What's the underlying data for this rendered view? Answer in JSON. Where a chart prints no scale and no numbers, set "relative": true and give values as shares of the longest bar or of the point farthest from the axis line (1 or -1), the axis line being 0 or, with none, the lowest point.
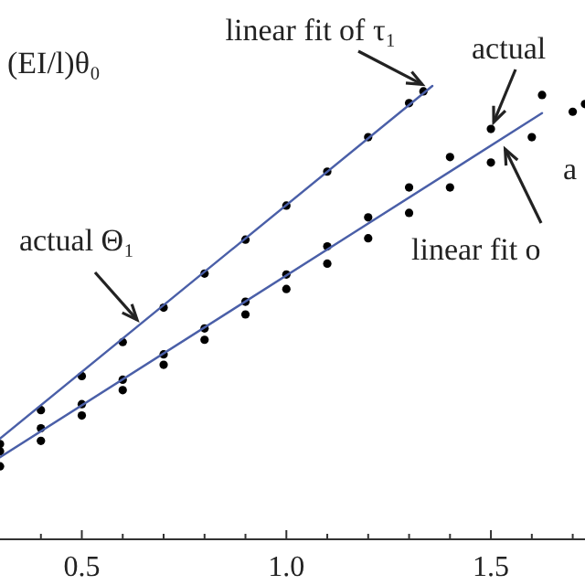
{
  "chart_data": {
    "type": "scatter",
    "relative": true,
    "ylabel": "(EI/l)θ₀",
    "xlim": [
      0.3,
      1.73
    ],
    "xticks": [
      {
        "value": 0.4,
        "label": null
      },
      {
        "value": 0.5,
        "label": "0.5"
      },
      {
        "value": 0.6,
        "label": null
      },
      {
        "value": 0.7,
        "label": null
      },
      {
        "value": 0.8,
        "label": null
      },
      {
        "value": 0.9,
        "label": null
      },
      {
        "value": 1.0,
        "label": "1.0"
      },
      {
        "value": 1.1,
        "label": null
      },
      {
        "value": 1.2,
        "label": null
      },
      {
        "value": 1.3,
        "label": null
      },
      {
        "value": 1.4,
        "label": null
      },
      {
        "value": 1.5,
        "label": "1.5"
      },
      {
        "value": 1.6,
        "label": null
      },
      {
        "value": 1.7,
        "label": null
      }
    ],
    "grid": false,
    "series": [
      {
        "marker": "circle",
        "color": "#000000",
        "x": [
          0.3,
          0.4,
          0.5,
          0.6,
          0.7,
          0.8,
          0.9,
          1.0,
          1.1,
          1.2,
          1.3,
          1.335
        ],
        "values": [
          0.21,
          0.285,
          0.36,
          0.435,
          0.511,
          0.586,
          0.661,
          0.736,
          0.811,
          0.887,
          0.962,
          0.988
        ]
      },
      {
        "type": "line",
        "line_style": "solid",
        "color": "#4a5fa8",
        "x": [
          0.3,
          1.357
        ],
        "values": [
          0.222,
          1.0
        ]
      },
      {
        "marker": "circle",
        "color": "#000000",
        "x": [
          0.3,
          0.4,
          0.5,
          0.6,
          0.7,
          0.8,
          0.9,
          1.0,
          1.1,
          1.2,
          1.3,
          1.4,
          1.5,
          1.625
        ],
        "values": [
          0.194,
          0.245,
          0.298,
          0.352,
          0.408,
          0.465,
          0.524,
          0.584,
          0.646,
          0.71,
          0.776,
          0.843,
          0.905,
          0.98
        ]
      },
      {
        "marker": "circle",
        "color": "#000000",
        "x": [
          0.3,
          0.4,
          0.5,
          0.6,
          0.7,
          0.8,
          0.9,
          1.0,
          1.1,
          1.2,
          1.3,
          1.4,
          1.5,
          1.6,
          1.7,
          1.73
        ],
        "values": [
          0.161,
          0.217,
          0.273,
          0.329,
          0.385,
          0.44,
          0.496,
          0.552,
          0.608,
          0.664,
          0.72,
          0.776,
          0.831,
          0.887,
          0.943,
          0.96
        ]
      },
      {
        "type": "line",
        "line_style": "solid",
        "color": "#4a5fa8",
        "x": [
          0.3,
          1.625
        ],
        "values": [
          0.181,
          0.94
        ]
      }
    ],
    "annotations": [
      {
        "text": "linear fit of τ₁",
        "x": 1.348,
        "y": 0.996
      },
      {
        "text": "actual Θ₁",
        "x": 0.647,
        "y": 0.472
      },
      {
        "text": "actual",
        "x": 1.5,
        "y": 0.905
      },
      "a",
      {
        "text": "linear fit o",
        "x": 1.527,
        "y": 0.875
      }
    ]
  }
}
